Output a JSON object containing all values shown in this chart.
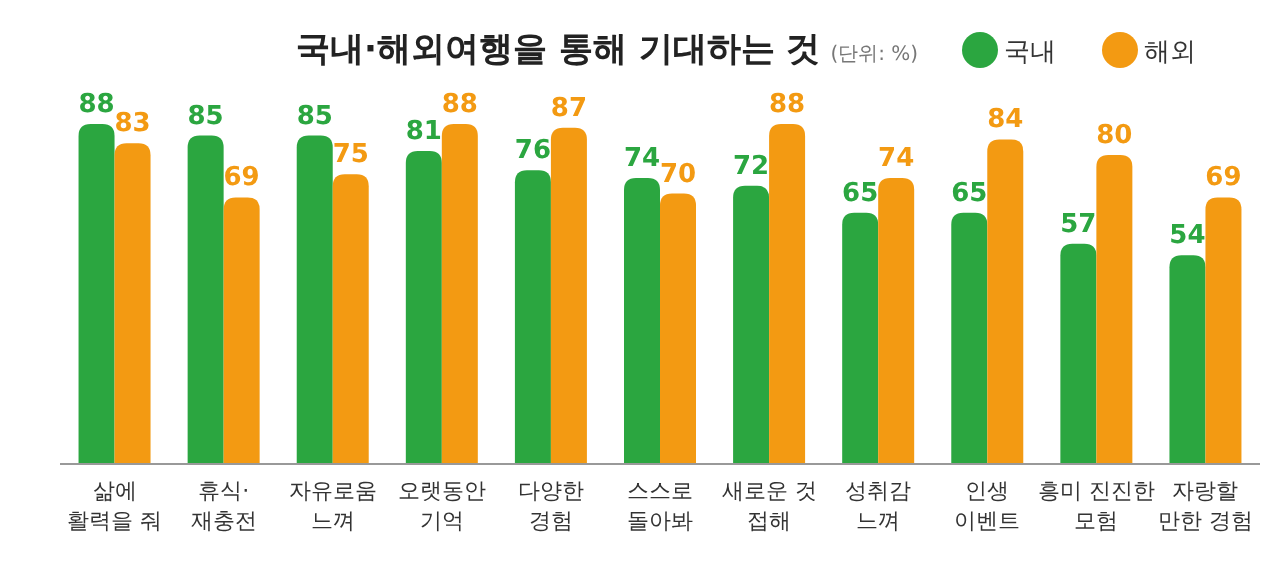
{
  "chart_data": {
    "type": "bar",
    "title": "국내·해외여행을 통해 기대하는 것",
    "subtitle": "(단위: %)",
    "categories": [
      "삶에\n활력을 줘",
      "휴식·\n재충전",
      "자유로움\n느껴",
      "오랫동안\n기억",
      "다양한\n경험",
      "스스로\n돌아봐",
      "새로운 것\n접해",
      "성취감\n느껴",
      "인생\n이벤트",
      "흥미 진진한\n모험",
      "자랑할\n만한 경험"
    ],
    "series": [
      {
        "name": "국내",
        "color": "#2ba640",
        "values": [
          88,
          85,
          85,
          81,
          76,
          74,
          72,
          65,
          65,
          57,
          54
        ]
      },
      {
        "name": "해외",
        "color": "#f39a12",
        "values": [
          83,
          69,
          75,
          88,
          87,
          70,
          88,
          74,
          84,
          80,
          69
        ]
      }
    ],
    "data_labels": true,
    "relative": false,
    "legend": "top right"
  }
}
